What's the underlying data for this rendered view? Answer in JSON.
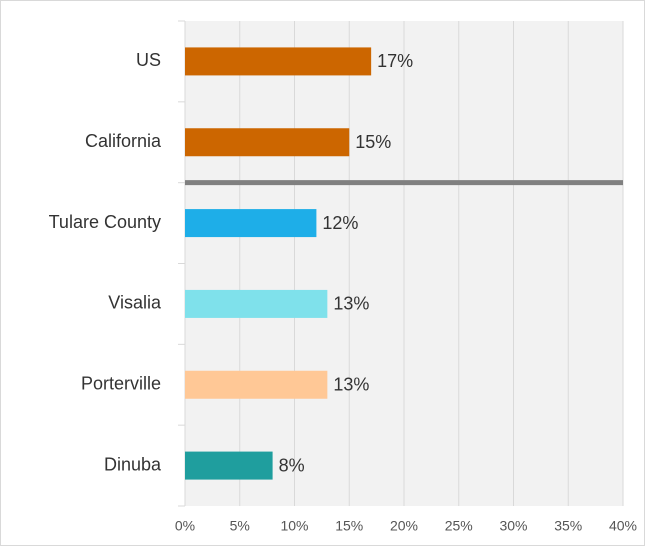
{
  "chart_data": {
    "type": "bar",
    "orientation": "horizontal",
    "categories": [
      "US",
      "California",
      "Tulare County",
      "Visalia",
      "Porterville",
      "Dinuba"
    ],
    "values": [
      17,
      15,
      12,
      13,
      13,
      8
    ],
    "value_labels": [
      "17%",
      "15%",
      "12%",
      "13%",
      "13%",
      "8%"
    ],
    "colors": [
      "#cc6600",
      "#cc6600",
      "#1eaee8",
      "#7fe1eb",
      "#ffc896",
      "#1f9e9e"
    ],
    "xlim": [
      0,
      40
    ],
    "xticks": [
      {
        "value": 0,
        "label": "0%"
      },
      {
        "value": 5,
        "label": "5%"
      },
      {
        "value": 10,
        "label": "10%"
      },
      {
        "value": 15,
        "label": "15%"
      },
      {
        "value": 20,
        "label": "20%"
      },
      {
        "value": 25,
        "label": "25%"
      },
      {
        "value": 30,
        "label": "30%"
      },
      {
        "value": 35,
        "label": "35%"
      },
      {
        "value": 40,
        "label": "40%"
      }
    ],
    "grid": true
  }
}
